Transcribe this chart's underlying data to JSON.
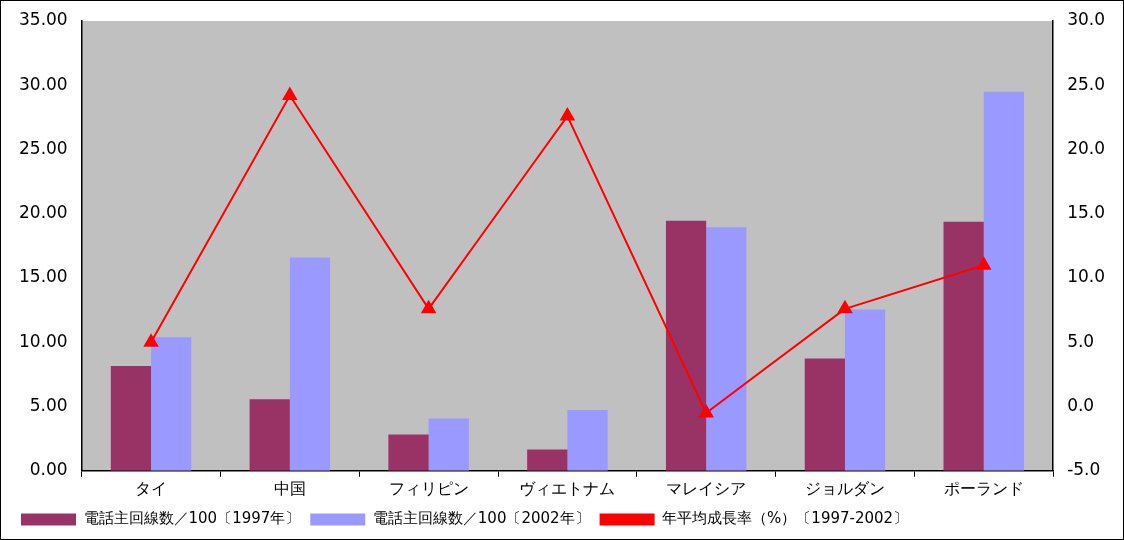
{
  "chart_data": {
    "type": "bar",
    "categories": [
      "タイ",
      "中国",
      "フィリピン",
      "ヴィエトナム",
      "マレイシア",
      "ジョルダン",
      "ポーランド"
    ],
    "series": [
      {
        "name": "電話主回線数／100〔1997年〕",
        "color": "#993366",
        "values": [
          8.15,
          5.57,
          2.83,
          1.66,
          19.45,
          8.73,
          19.37
        ]
      },
      {
        "name": "電話主回線数／100〔2002年〕",
        "color": "#9999ff",
        "values": [
          10.4,
          16.6,
          4.07,
          4.74,
          18.95,
          12.55,
          29.5
        ]
      },
      {
        "name": "年平均成長率（%）〔1997-2002〕",
        "type": "line",
        "axis": "y2",
        "color": "#ff0000",
        "marker": "triangle",
        "values": [
          5.0,
          24.2,
          7.6,
          22.6,
          -0.5,
          7.6,
          11.0
        ]
      }
    ],
    "ylim": [
      0,
      35
    ],
    "yticks": [
      {
        "value": 0,
        "label": "0.00"
      },
      {
        "value": 5,
        "label": "5.00"
      },
      {
        "value": 10,
        "label": "10.00"
      },
      {
        "value": 15,
        "label": "15.00"
      },
      {
        "value": 20,
        "label": "20.00"
      },
      {
        "value": 25,
        "label": "25.00"
      },
      {
        "value": 30,
        "label": "30.00"
      },
      {
        "value": 35,
        "label": "35.00"
      }
    ],
    "y2lim": [
      -5,
      30
    ],
    "y2ticks": [
      {
        "value": -5,
        "label": "-5.0"
      },
      {
        "value": 0,
        "label": "0.0"
      },
      {
        "value": 5,
        "label": "5.0"
      },
      {
        "value": 10,
        "label": "10.0"
      },
      {
        "value": 15,
        "label": "15.0"
      },
      {
        "value": 20,
        "label": "20.0"
      },
      {
        "value": 25,
        "label": "25.0"
      },
      {
        "value": 30,
        "label": "30.0"
      }
    ],
    "grid": false,
    "legend": "bottom"
  }
}
